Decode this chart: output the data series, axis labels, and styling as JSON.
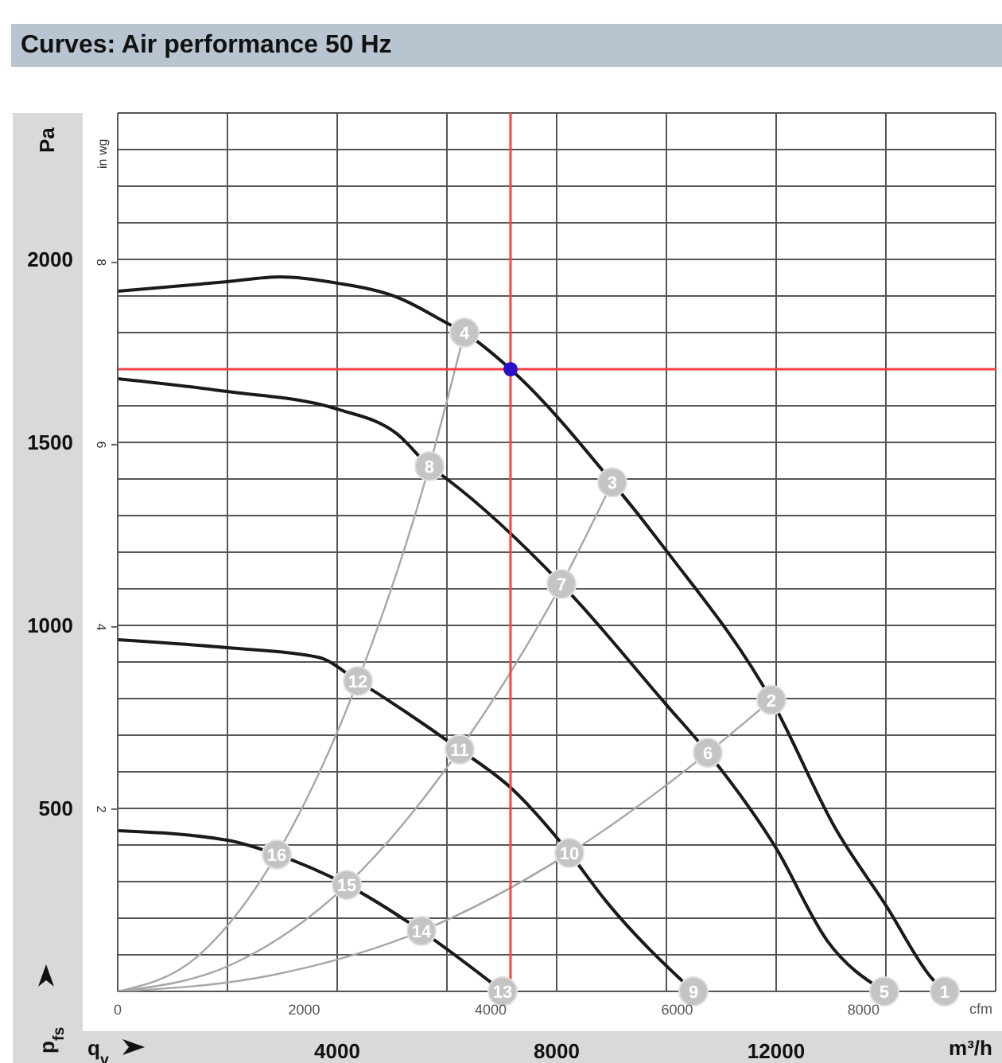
{
  "chart_data": {
    "type": "line",
    "title": "Curves: Air performance 50 Hz",
    "xlabel": "m³/h",
    "ylabel": "Pa",
    "x2label": "cfm",
    "y2label": "in wg",
    "xlim": [
      0,
      16000
    ],
    "xticks": [
      {
        "value": 0,
        "label": null
      },
      {
        "value": 2000,
        "label": null
      },
      4000,
      {
        "value": 6000,
        "label": null
      },
      8000,
      {
        "value": 10000,
        "label": null
      },
      12000,
      {
        "value": 14000,
        "label": null
      },
      {
        "value": 16000,
        "label": null
      }
    ],
    "x2lim": [
      0,
      9417
    ],
    "x2ticks": [
      0,
      2000,
      4000,
      6000,
      8000
    ],
    "ylim": [
      0,
      2400
    ],
    "yticks": [
      {
        "value": 0,
        "label": null
      },
      {
        "value": 100,
        "label": null
      },
      {
        "value": 200,
        "label": null
      },
      {
        "value": 300,
        "label": null
      },
      {
        "value": 400,
        "label": null
      },
      500,
      {
        "value": 600,
        "label": null
      },
      {
        "value": 700,
        "label": null
      },
      {
        "value": 800,
        "label": null
      },
      {
        "value": 900,
        "label": null
      },
      1000,
      {
        "value": 1100,
        "label": null
      },
      {
        "value": 1200,
        "label": null
      },
      {
        "value": 1300,
        "label": null
      },
      {
        "value": 1400,
        "label": null
      },
      1500,
      {
        "value": 1600,
        "label": null
      },
      {
        "value": 1700,
        "label": null
      },
      {
        "value": 1800,
        "label": null
      },
      {
        "value": 1900,
        "label": null
      },
      2000,
      {
        "value": 2100,
        "label": null
      },
      {
        "value": 2200,
        "label": null
      },
      {
        "value": 2300,
        "label": null
      },
      {
        "value": 2400,
        "label": null
      }
    ],
    "y2lim": [
      0,
      9.64
    ],
    "y2ticks": [
      2,
      4,
      6,
      8
    ],
    "grid": true,
    "series": [
      {
        "color": "#1a1a1a",
        "x": [
          0,
          2000,
          2957,
          4000,
          5101,
          6000,
          6319,
          7159,
          9014,
          10000,
          11913,
          13100,
          14000,
          14841,
          15072
        ],
        "values": [
          1913,
          1939,
          1952,
          1935,
          1896,
          1826,
          1800,
          1700,
          1391,
          1204,
          796,
          440,
          235,
          35,
          0
        ]
      },
      {
        "color": "#1a1a1a",
        "x": [
          0,
          2000,
          4000,
          5101,
          5681,
          6000,
          8087,
          10000,
          10754,
          12000,
          12928,
          13971
        ],
        "values": [
          1674,
          1639,
          1591,
          1522,
          1435,
          1400,
          1113,
          783,
          652,
          391,
          139,
          0
        ]
      },
      {
        "color": "#1a1a1a",
        "x": [
          0,
          2000,
          3652,
          4377,
          6232,
          7159,
          8232,
          8870,
          10493
        ],
        "values": [
          961,
          939,
          913,
          848,
          661,
          557,
          378,
          252,
          0
        ]
      },
      {
        "color": "#1a1a1a",
        "x": [
          0,
          2000,
          2899,
          4174,
          5536,
          7014
        ],
        "values": [
          439,
          413,
          374,
          291,
          165,
          0
        ]
      },
      {
        "color": "#a6a6a6",
        "x": [
          0,
          1450,
          2899,
          4377,
          5681,
          6319
        ],
        "values": [
          0,
          95,
          374,
          848,
          1435,
          1800
        ]
      },
      {
        "color": "#a6a6a6",
        "x": [
          0,
          2100,
          4174,
          6232,
          8087,
          9014
        ],
        "values": [
          0,
          75,
          291,
          661,
          1113,
          1391
        ]
      },
      {
        "color": "#a6a6a6",
        "x": [
          0,
          2800,
          5536,
          8232,
          10754,
          11913
        ],
        "values": [
          0,
          44,
          165,
          378,
          652,
          796
        ]
      },
      {
        "type": "scatter",
        "marker": "circle",
        "color": "#2a10c8",
        "x": [
          7159
        ],
        "values": [
          1700
        ]
      }
    ],
    "ref_lines": [
      {
        "axis": "x",
        "value": 7159,
        "color": "#ff4040"
      },
      {
        "axis": "y",
        "value": 1700,
        "color": "#ff4040"
      }
    ],
    "annotations": [
      {
        "text": "1",
        "x": 15072,
        "y": 0
      },
      {
        "text": "2",
        "x": 11913,
        "y": 796
      },
      {
        "text": "3",
        "x": 9014,
        "y": 1391
      },
      {
        "text": "4",
        "x": 6319,
        "y": 1800
      },
      {
        "text": "5",
        "x": 13971,
        "y": 0
      },
      {
        "text": "6",
        "x": 10754,
        "y": 652
      },
      {
        "text": "7",
        "x": 8087,
        "y": 1113
      },
      {
        "text": "8",
        "x": 5681,
        "y": 1435
      },
      {
        "text": "9",
        "x": 10493,
        "y": 0
      },
      {
        "text": "10",
        "x": 8232,
        "y": 378
      },
      {
        "text": "11",
        "x": 6232,
        "y": 661
      },
      {
        "text": "12",
        "x": 4377,
        "y": 848
      },
      {
        "text": "13",
        "x": 7014,
        "y": 0
      },
      {
        "text": "14",
        "x": 5536,
        "y": 165
      },
      {
        "text": "15",
        "x": 4174,
        "y": 291
      },
      {
        "text": "16",
        "x": 2899,
        "y": 374
      },
      "p$_{fs}$",
      "q$_{v}$"
    ]
  }
}
